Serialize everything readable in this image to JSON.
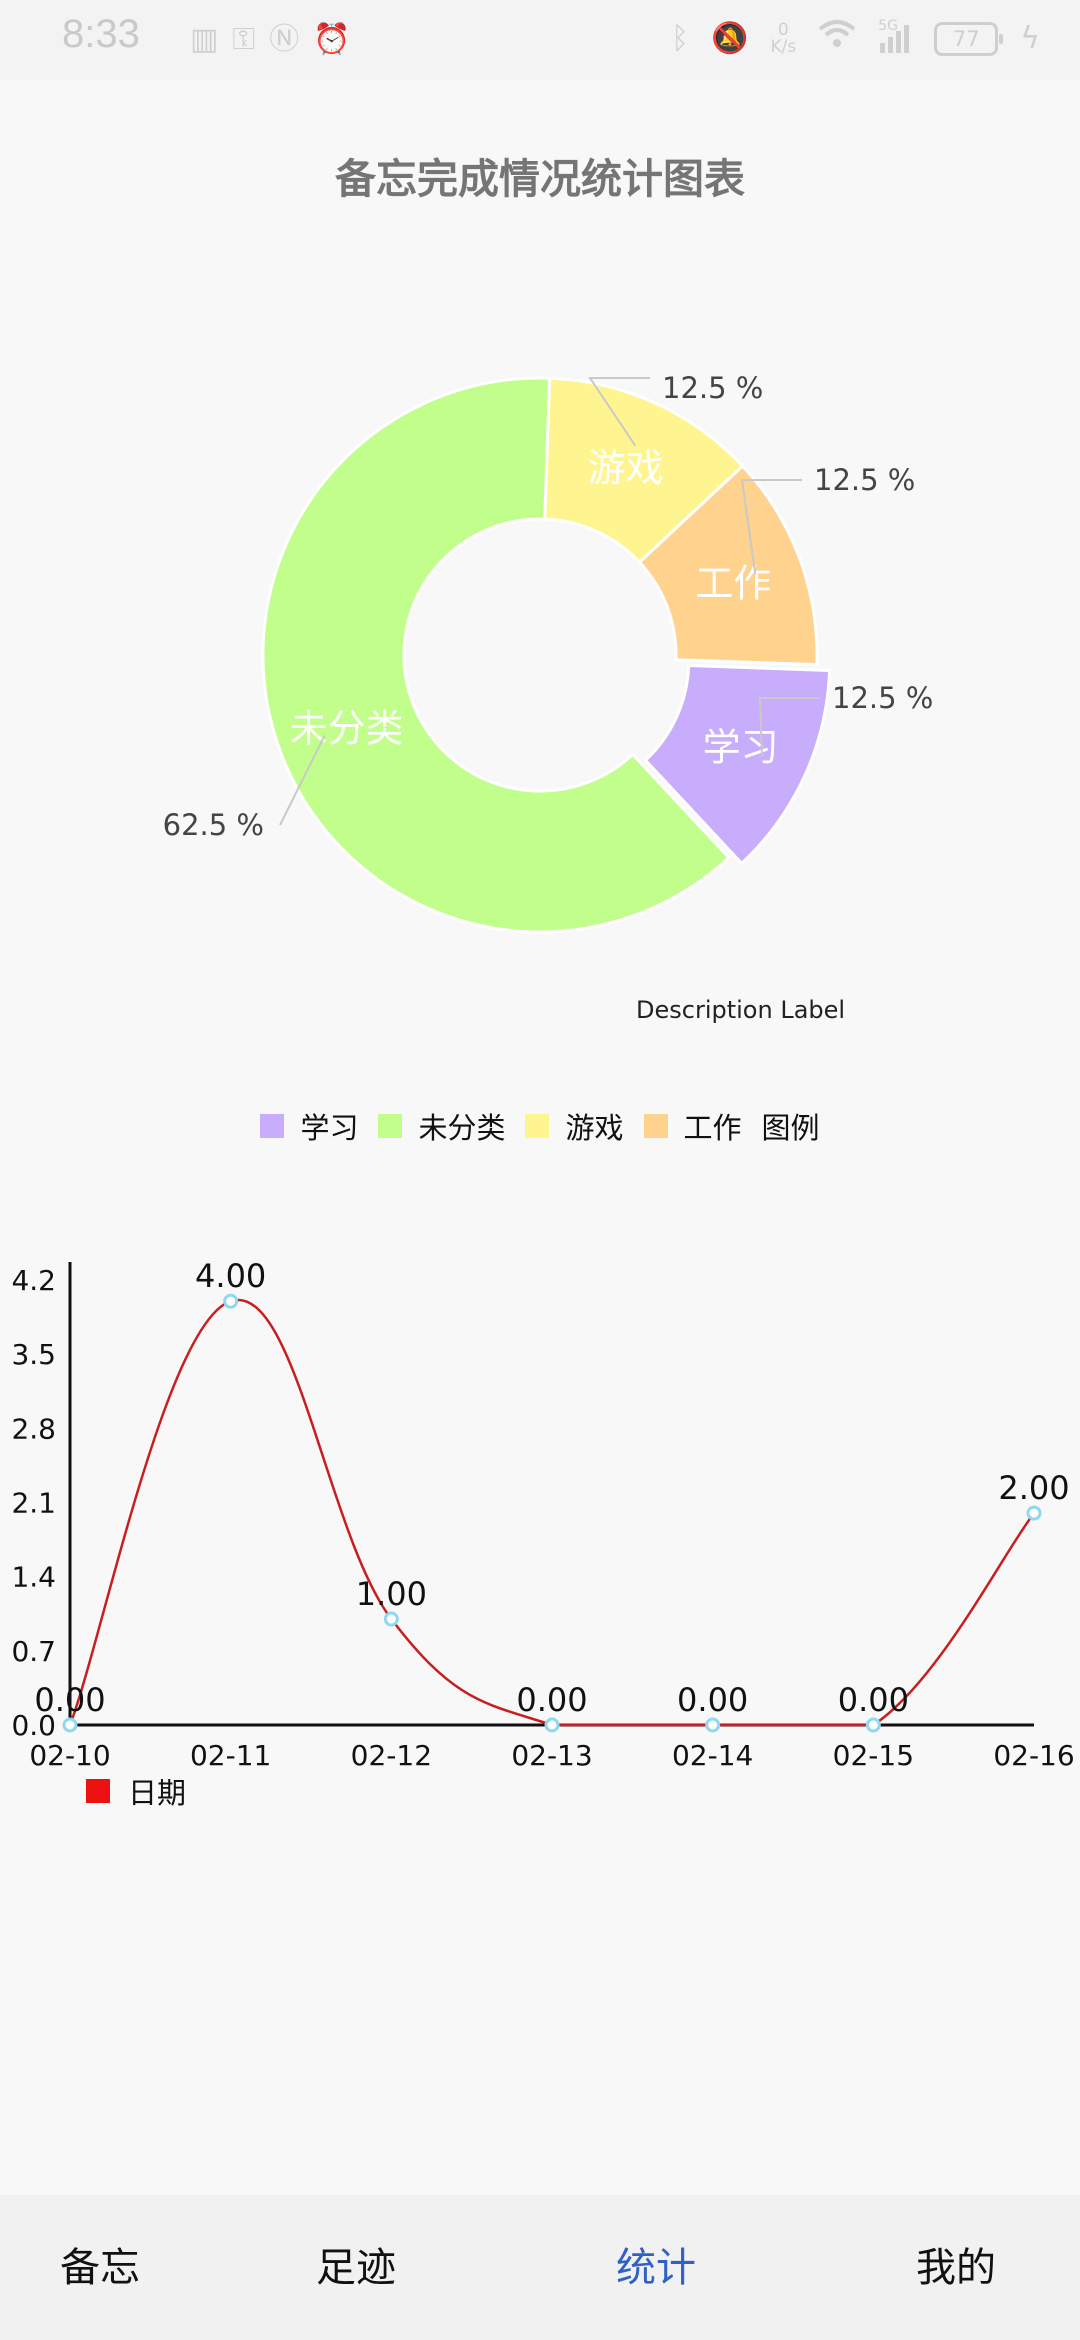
{
  "status_bar": {
    "time": "8:33",
    "battery": "77",
    "net_speed_value": "0",
    "net_speed_unit": "K/s",
    "signal_label": "5G",
    "icons_left": [
      "sim-icon",
      "key-icon",
      "nfc-icon",
      "alarm-icon"
    ],
    "icons_right": [
      "bluetooth-icon",
      "mute-icon",
      "wifi-icon",
      "signal-icon",
      "battery-icon",
      "charging-icon"
    ]
  },
  "page": {
    "title": "备忘完成情况统计图表",
    "description_label": "Description Label"
  },
  "pie_chart": {
    "legend_title": "图例"
  },
  "line_chart": {
    "legend_label": "日期"
  },
  "chart_data": [
    {
      "type": "pie",
      "title": "备忘完成情况统计图表",
      "donut": true,
      "slices": [
        {
          "label": "学习",
          "value": 12.5,
          "value_label": "12.5 %",
          "color": "#c7adfb"
        },
        {
          "label": "未分类",
          "value": 62.5,
          "value_label": "62.5 %",
          "color": "#c1fe8b"
        },
        {
          "label": "游戏",
          "value": 12.5,
          "value_label": "12.5 %",
          "color": "#fff590"
        },
        {
          "label": "工作",
          "value": 12.5,
          "value_label": "12.5 %",
          "color": "#ffd28e"
        }
      ],
      "legend": [
        "学习",
        "未分类",
        "游戏",
        "工作"
      ],
      "legend_placement": "bottom-center"
    },
    {
      "type": "line",
      "categories": [
        "02-10",
        "02-11",
        "02-12",
        "02-13",
        "02-14",
        "02-15",
        "02-16"
      ],
      "series": [
        {
          "name": "日期",
          "values": [
            0.0,
            4.0,
            1.0,
            0.0,
            0.0,
            0.0,
            2.0
          ],
          "value_labels": [
            "0.00",
            "4.00",
            "1.00",
            "0.00",
            "0.00",
            "0.00",
            "2.00"
          ],
          "color": "#c81e1e"
        }
      ],
      "y_ticks": [
        "0.0",
        "0.7",
        "1.4",
        "2.1",
        "2.8",
        "3.5",
        "4.2"
      ],
      "ylim": [
        0,
        4.2
      ],
      "smooth": true,
      "point_color": "#8fd8f0",
      "legend_placement": "bottom-left"
    }
  ],
  "bottom_nav": {
    "items": [
      {
        "label": "备忘",
        "active": false
      },
      {
        "label": "足迹",
        "active": false
      },
      {
        "label": "统计",
        "active": true
      },
      {
        "label": "我的",
        "active": false
      }
    ]
  }
}
